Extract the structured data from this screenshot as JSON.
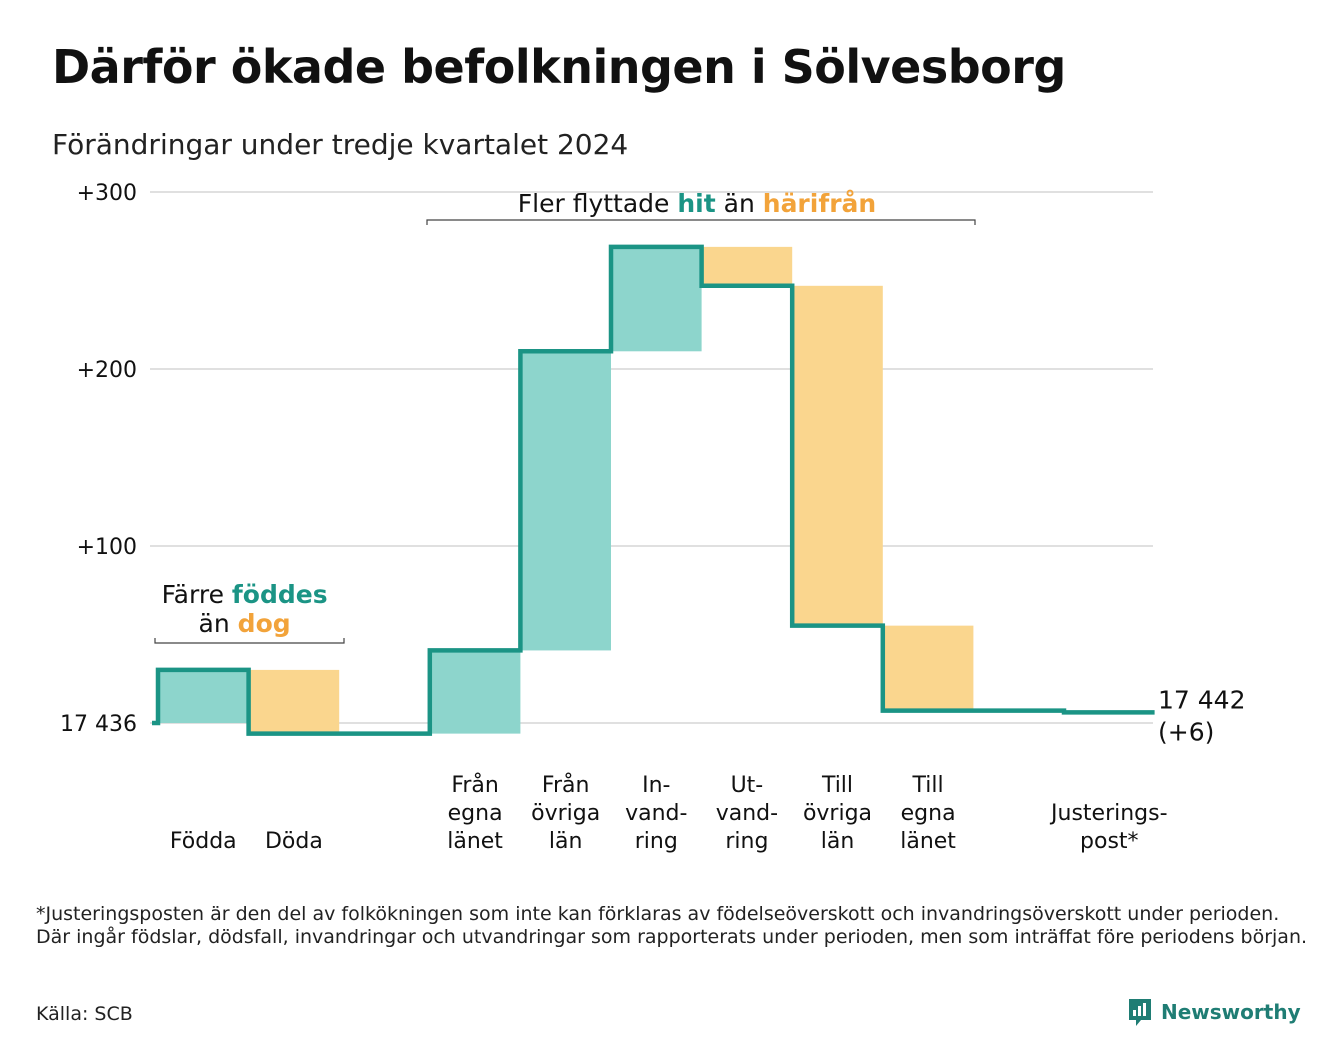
{
  "title": "Därför ökade befolkningen i Sölvesborg",
  "subtitle": "Förändringar under tredje kvartalet 2024",
  "footnote": "*Justeringsposten är den del av folkökningen som inte kan förklaras av födelseöverskott och invandringsöverskott under perioden. Där ingår födslar, dödsfall, invandringar och utvandringar som rapporterats under perioden, men som inträffat före periodens början.",
  "source": "Källa: SCB",
  "brand": {
    "name": "Newsworthy",
    "logo_icon": "bar-chart-speech-bubble-icon"
  },
  "colors": {
    "increase": "#8dd5cc",
    "decrease": "#fad68e",
    "line": "#1b9485",
    "hit": "#1b9485",
    "harifran": "#f2a33a",
    "grid": "#e0e0e0"
  },
  "chart_data": {
    "type": "waterfall",
    "start_value": 17436,
    "y_ticks": [
      {
        "value": 0,
        "label": "17 436"
      },
      {
        "value": 100,
        "label": "+100"
      },
      {
        "value": 200,
        "label": "+200"
      },
      {
        "value": 300,
        "label": "+300"
      }
    ],
    "ylim": [
      -12,
      300
    ],
    "grid": true,
    "steps": [
      {
        "label_lines": [
          "Födda"
        ],
        "from": 0,
        "to": 30,
        "kind": "increase"
      },
      {
        "label_lines": [
          "Döda"
        ],
        "from": 30,
        "to": -6,
        "kind": "decrease"
      },
      {
        "label_lines": [],
        "from": -6,
        "to": -6,
        "kind": "none"
      },
      {
        "label_lines": [
          "Från",
          "egna",
          "länet"
        ],
        "from": -6,
        "to": 41,
        "kind": "increase"
      },
      {
        "label_lines": [
          "Från",
          "övriga",
          "län"
        ],
        "from": 41,
        "to": 210,
        "kind": "increase"
      },
      {
        "label_lines": [
          "In-",
          "vand-",
          "ring"
        ],
        "from": 210,
        "to": 269,
        "kind": "increase"
      },
      {
        "label_lines": [
          "Ut-",
          "vand-",
          "ring"
        ],
        "from": 269,
        "to": 247,
        "kind": "decrease"
      },
      {
        "label_lines": [
          "Till",
          "övriga",
          "län"
        ],
        "from": 247,
        "to": 55,
        "kind": "decrease"
      },
      {
        "label_lines": [
          "Till",
          "egna",
          "länet"
        ],
        "from": 55,
        "to": 7,
        "kind": "decrease"
      },
      {
        "label_lines": [],
        "from": 7,
        "to": 7,
        "kind": "none"
      },
      {
        "label_lines": [
          "Justerings-",
          "post*"
        ],
        "from": 7,
        "to": 6,
        "kind": "adjustment"
      }
    ],
    "end_label": {
      "lines": [
        "17 442",
        "(+6)"
      ],
      "value": 6
    },
    "annotations": [
      {
        "lines": [
          [
            "Färre ",
            "föddes"
          ],
          [
            "än ",
            "dog"
          ]
        ],
        "span": [
          0,
          1
        ]
      },
      {
        "lines": [
          [
            "Fler flyttade ",
            "hit",
            " än ",
            "härifrån"
          ]
        ],
        "span": [
          3,
          8
        ]
      }
    ]
  }
}
